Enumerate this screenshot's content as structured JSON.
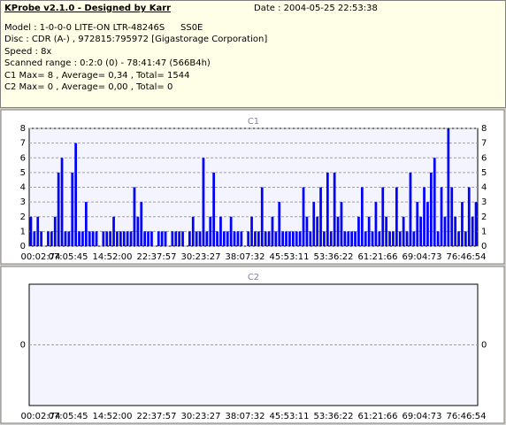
{
  "header": {
    "title": "KProbe v2.1.0 - Designed by Karr",
    "date": "Date : 2004-05-25 22:53:38",
    "model": "Model : 1-0-0-0 LITE-ON LTR-48246S",
    "firmware": "SS0E",
    "disc": "Disc : CDR (A-) , 972815:795972 [Gigastorage Corporation]",
    "speed": "Speed : 8x",
    "range": "Scanned range : 0:2:0 (0) - 78:41:47 (566B4h)",
    "c1_summary": "C1 Max= 8 , Average= 0,34 , Total= 1544",
    "c2_summary": "C2 Max= 0 , Average= 0,00 , Total= 0"
  },
  "chart_data": [
    {
      "type": "bar",
      "title": "C1",
      "color": "#0000ff",
      "grid": true,
      "ylim": [
        0,
        8
      ],
      "yticks": [
        0,
        1,
        2,
        3,
        4,
        5,
        6,
        7,
        8
      ],
      "xtick_labels": [
        "00:02:74",
        "07:05:45",
        "14:52:00",
        "22:37:57",
        "30:23:27",
        "38:07:32",
        "45:53:11",
        "53:36:22",
        "61:21:66",
        "69:04:73",
        "76:46:54"
      ],
      "values": [
        2,
        1,
        2,
        1,
        0,
        1,
        1,
        2,
        5,
        6,
        1,
        1,
        5,
        7,
        1,
        1,
        3,
        1,
        1,
        1,
        0,
        1,
        1,
        1,
        2,
        1,
        1,
        1,
        1,
        1,
        4,
        2,
        3,
        1,
        1,
        1,
        0,
        1,
        1,
        1,
        0,
        1,
        1,
        1,
        1,
        0,
        1,
        2,
        1,
        1,
        6,
        1,
        2,
        5,
        1,
        2,
        1,
        1,
        2,
        1,
        1,
        1,
        0,
        1,
        2,
        1,
        1,
        4,
        1,
        1,
        2,
        1,
        3,
        1,
        1,
        1,
        1,
        1,
        1,
        4,
        2,
        1,
        3,
        2,
        4,
        1,
        5,
        1,
        5,
        2,
        3,
        1,
        1,
        1,
        1,
        2,
        4,
        1,
        2,
        1,
        3,
        1,
        4,
        2,
        1,
        1,
        4,
        1,
        2,
        1,
        5,
        1,
        3,
        2,
        4,
        3,
        5,
        6,
        1,
        4,
        2,
        8,
        4,
        2,
        1,
        3,
        1,
        4,
        2,
        3
      ]
    },
    {
      "type": "bar",
      "title": "C2",
      "color": "#0000ff",
      "grid": true,
      "ylim": [
        -1,
        1
      ],
      "yticks": [
        0
      ],
      "xtick_labels": [
        "00:02:74",
        "07:05:45",
        "14:52:00",
        "22:37:57",
        "30:23:27",
        "38:07:32",
        "45:53:11",
        "53:36:22",
        "61:21:66",
        "69:04:73",
        "76:46:54"
      ],
      "values": []
    }
  ]
}
